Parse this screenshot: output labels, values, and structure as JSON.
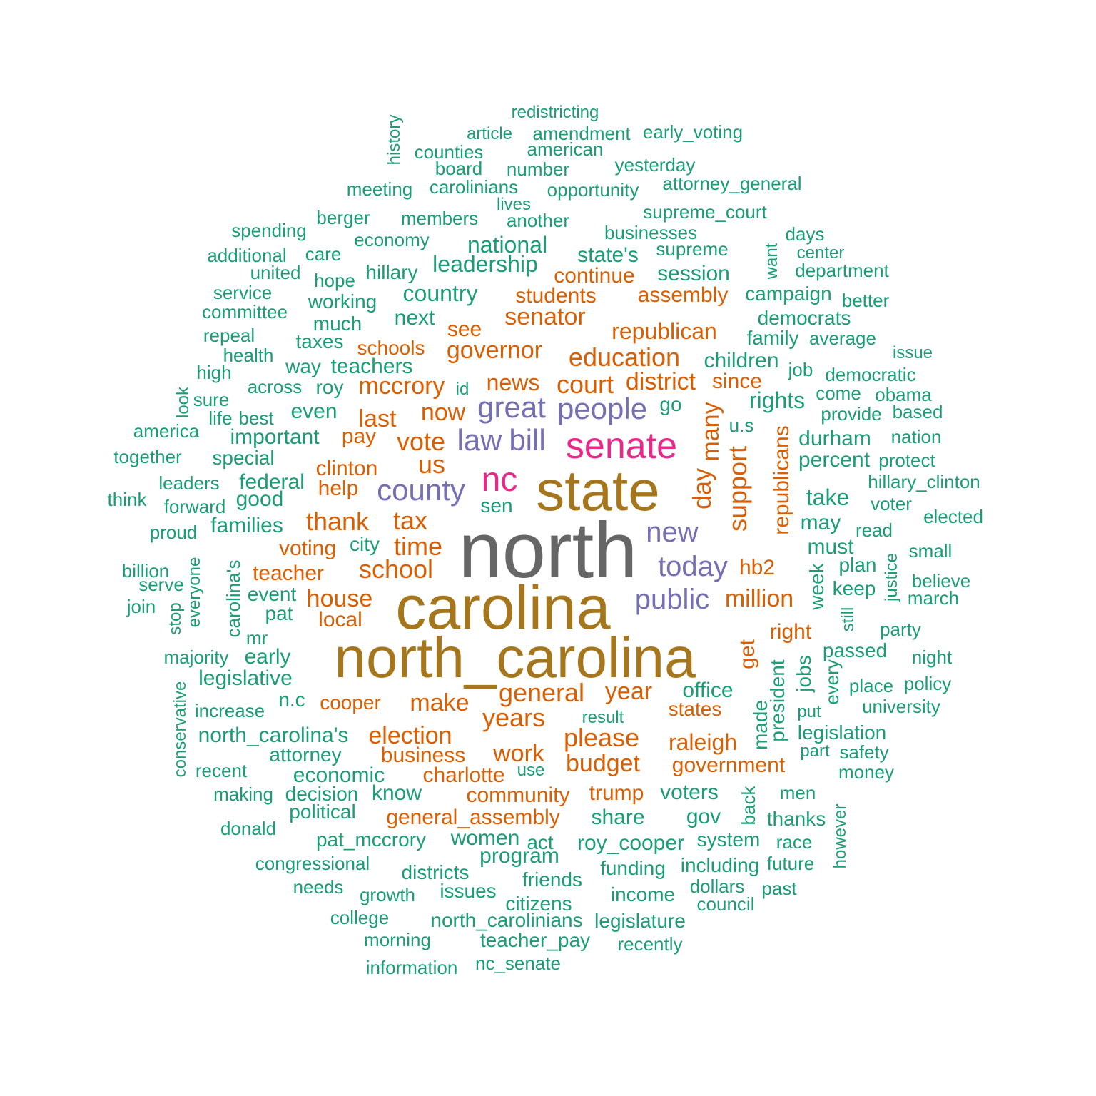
{
  "palette": {
    "teal": "#1b9e77",
    "orange": "#d95f02",
    "purple": "#7570b3",
    "magenta": "#e7298a",
    "olive": "#a6761d",
    "gray": "#666666"
  },
  "words": [
    {
      "text": "north",
      "color": "gray"
    },
    {
      "text": "carolina",
      "color": "olive"
    },
    {
      "text": "north_carolina",
      "color": "olive"
    },
    {
      "text": "state",
      "color": "olive"
    },
    {
      "text": "senate",
      "color": "magenta"
    },
    {
      "text": "nc",
      "color": "magenta"
    },
    {
      "text": "people",
      "color": "purple"
    },
    {
      "text": "great",
      "color": "purple"
    },
    {
      "text": "law",
      "color": "purple"
    },
    {
      "text": "bill",
      "color": "purple"
    },
    {
      "text": "county",
      "color": "purple"
    },
    {
      "text": "new",
      "color": "purple"
    },
    {
      "text": "today",
      "color": "purple"
    },
    {
      "text": "public",
      "color": "purple"
    },
    {
      "text": "education",
      "color": "orange"
    },
    {
      "text": "governor",
      "color": "orange"
    },
    {
      "text": "republican",
      "color": "orange"
    },
    {
      "text": "senator",
      "color": "orange"
    },
    {
      "text": "mccrory",
      "color": "orange"
    },
    {
      "text": "court",
      "color": "orange"
    },
    {
      "text": "district",
      "color": "orange"
    },
    {
      "text": "news",
      "color": "orange"
    },
    {
      "text": "vote",
      "color": "orange"
    },
    {
      "text": "now",
      "color": "orange"
    },
    {
      "text": "last",
      "color": "orange"
    },
    {
      "text": "us",
      "color": "orange"
    },
    {
      "text": "tax",
      "color": "orange"
    },
    {
      "text": "thank",
      "color": "orange"
    },
    {
      "text": "time",
      "color": "orange"
    },
    {
      "text": "school",
      "color": "orange"
    },
    {
      "text": "house",
      "color": "orange"
    },
    {
      "text": "million",
      "color": "orange"
    },
    {
      "text": "support",
      "color": "orange"
    },
    {
      "text": "day",
      "color": "orange"
    },
    {
      "text": "many",
      "color": "orange"
    },
    {
      "text": "republicans",
      "color": "orange"
    },
    {
      "text": "general",
      "color": "orange"
    },
    {
      "text": "year",
      "color": "orange"
    },
    {
      "text": "make",
      "color": "orange"
    },
    {
      "text": "years",
      "color": "orange"
    },
    {
      "text": "election",
      "color": "orange"
    },
    {
      "text": "please",
      "color": "orange"
    },
    {
      "text": "work",
      "color": "orange"
    },
    {
      "text": "budget",
      "color": "orange"
    },
    {
      "text": "raleigh",
      "color": "orange"
    },
    {
      "text": "government",
      "color": "orange"
    },
    {
      "text": "business",
      "color": "orange"
    },
    {
      "text": "charlotte",
      "color": "orange"
    },
    {
      "text": "community",
      "color": "orange"
    },
    {
      "text": "trump",
      "color": "orange"
    },
    {
      "text": "general_assembly",
      "color": "orange"
    },
    {
      "text": "continue",
      "color": "orange"
    },
    {
      "text": "students",
      "color": "orange"
    },
    {
      "text": "assembly",
      "color": "orange"
    },
    {
      "text": "see",
      "color": "orange"
    },
    {
      "text": "schools",
      "color": "orange"
    },
    {
      "text": "since",
      "color": "orange"
    },
    {
      "text": "pay",
      "color": "orange"
    },
    {
      "text": "clinton",
      "color": "orange"
    },
    {
      "text": "help",
      "color": "orange"
    },
    {
      "text": "voting",
      "color": "orange"
    },
    {
      "text": "teacher",
      "color": "orange"
    },
    {
      "text": "local",
      "color": "orange"
    },
    {
      "text": "hb2",
      "color": "orange"
    },
    {
      "text": "right",
      "color": "orange"
    },
    {
      "text": "get",
      "color": "orange"
    },
    {
      "text": "cooper",
      "color": "orange"
    },
    {
      "text": "states",
      "color": "orange"
    },
    {
      "text": "redistricting",
      "color": "teal"
    },
    {
      "text": "history",
      "color": "teal"
    },
    {
      "text": "article",
      "color": "teal"
    },
    {
      "text": "amendment",
      "color": "teal"
    },
    {
      "text": "early_voting",
      "color": "teal"
    },
    {
      "text": "counties",
      "color": "teal"
    },
    {
      "text": "american",
      "color": "teal"
    },
    {
      "text": "board",
      "color": "teal"
    },
    {
      "text": "number",
      "color": "teal"
    },
    {
      "text": "yesterday",
      "color": "teal"
    },
    {
      "text": "meeting",
      "color": "teal"
    },
    {
      "text": "carolinians",
      "color": "teal"
    },
    {
      "text": "opportunity",
      "color": "teal"
    },
    {
      "text": "attorney_general",
      "color": "teal"
    },
    {
      "text": "lives",
      "color": "teal"
    },
    {
      "text": "berger",
      "color": "teal"
    },
    {
      "text": "members",
      "color": "teal"
    },
    {
      "text": "another",
      "color": "teal"
    },
    {
      "text": "supreme_court",
      "color": "teal"
    },
    {
      "text": "spending",
      "color": "teal"
    },
    {
      "text": "economy",
      "color": "teal"
    },
    {
      "text": "businesses",
      "color": "teal"
    },
    {
      "text": "days",
      "color": "teal"
    },
    {
      "text": "national",
      "color": "teal"
    },
    {
      "text": "additional",
      "color": "teal"
    },
    {
      "text": "care",
      "color": "teal"
    },
    {
      "text": "state's",
      "color": "teal"
    },
    {
      "text": "supreme",
      "color": "teal"
    },
    {
      "text": "want",
      "color": "teal"
    },
    {
      "text": "center",
      "color": "teal"
    },
    {
      "text": "united",
      "color": "teal"
    },
    {
      "text": "hope",
      "color": "teal"
    },
    {
      "text": "hillary",
      "color": "teal"
    },
    {
      "text": "leadership",
      "color": "teal"
    },
    {
      "text": "session",
      "color": "teal"
    },
    {
      "text": "department",
      "color": "teal"
    },
    {
      "text": "service",
      "color": "teal"
    },
    {
      "text": "working",
      "color": "teal"
    },
    {
      "text": "country",
      "color": "teal"
    },
    {
      "text": "campaign",
      "color": "teal"
    },
    {
      "text": "better",
      "color": "teal"
    },
    {
      "text": "committee",
      "color": "teal"
    },
    {
      "text": "much",
      "color": "teal"
    },
    {
      "text": "next",
      "color": "teal"
    },
    {
      "text": "democrats",
      "color": "teal"
    },
    {
      "text": "repeal",
      "color": "teal"
    },
    {
      "text": "taxes",
      "color": "teal"
    },
    {
      "text": "family",
      "color": "teal"
    },
    {
      "text": "average",
      "color": "teal"
    },
    {
      "text": "health",
      "color": "teal"
    },
    {
      "text": "issue",
      "color": "teal"
    },
    {
      "text": "way",
      "color": "teal"
    },
    {
      "text": "teachers",
      "color": "teal"
    },
    {
      "text": "children",
      "color": "teal"
    },
    {
      "text": "job",
      "color": "teal"
    },
    {
      "text": "democratic",
      "color": "teal"
    },
    {
      "text": "high",
      "color": "teal"
    },
    {
      "text": "across",
      "color": "teal"
    },
    {
      "text": "roy",
      "color": "teal"
    },
    {
      "text": "id",
      "color": "teal"
    },
    {
      "text": "look",
      "color": "teal"
    },
    {
      "text": "sure",
      "color": "teal"
    },
    {
      "text": "rights",
      "color": "teal"
    },
    {
      "text": "come",
      "color": "teal"
    },
    {
      "text": "obama",
      "color": "teal"
    },
    {
      "text": "go",
      "color": "teal"
    },
    {
      "text": "life",
      "color": "teal"
    },
    {
      "text": "best",
      "color": "teal"
    },
    {
      "text": "even",
      "color": "teal"
    },
    {
      "text": "provide",
      "color": "teal"
    },
    {
      "text": "based",
      "color": "teal"
    },
    {
      "text": "america",
      "color": "teal"
    },
    {
      "text": "u.s",
      "color": "teal"
    },
    {
      "text": "important",
      "color": "teal"
    },
    {
      "text": "durham",
      "color": "teal"
    },
    {
      "text": "nation",
      "color": "teal"
    },
    {
      "text": "together",
      "color": "teal"
    },
    {
      "text": "special",
      "color": "teal"
    },
    {
      "text": "percent",
      "color": "teal"
    },
    {
      "text": "protect",
      "color": "teal"
    },
    {
      "text": "leaders",
      "color": "teal"
    },
    {
      "text": "federal",
      "color": "teal"
    },
    {
      "text": "hillary_clinton",
      "color": "teal"
    },
    {
      "text": "think",
      "color": "teal"
    },
    {
      "text": "good",
      "color": "teal"
    },
    {
      "text": "take",
      "color": "teal"
    },
    {
      "text": "forward",
      "color": "teal"
    },
    {
      "text": "sen",
      "color": "teal"
    },
    {
      "text": "voter",
      "color": "teal"
    },
    {
      "text": "elected",
      "color": "teal"
    },
    {
      "text": "proud",
      "color": "teal"
    },
    {
      "text": "families",
      "color": "teal"
    },
    {
      "text": "may",
      "color": "teal"
    },
    {
      "text": "read",
      "color": "teal"
    },
    {
      "text": "city",
      "color": "teal"
    },
    {
      "text": "must",
      "color": "teal"
    },
    {
      "text": "small",
      "color": "teal"
    },
    {
      "text": "billion",
      "color": "teal"
    },
    {
      "text": "everyone",
      "color": "teal"
    },
    {
      "text": "carolina's",
      "color": "teal"
    },
    {
      "text": "week",
      "color": "teal"
    },
    {
      "text": "plan",
      "color": "teal"
    },
    {
      "text": "justice",
      "color": "teal"
    },
    {
      "text": "believe",
      "color": "teal"
    },
    {
      "text": "serve",
      "color": "teal"
    },
    {
      "text": "event",
      "color": "teal"
    },
    {
      "text": "keep",
      "color": "teal"
    },
    {
      "text": "march",
      "color": "teal"
    },
    {
      "text": "join",
      "color": "teal"
    },
    {
      "text": "stop",
      "color": "teal"
    },
    {
      "text": "pat",
      "color": "teal"
    },
    {
      "text": "still",
      "color": "teal"
    },
    {
      "text": "party",
      "color": "teal"
    },
    {
      "text": "mr",
      "color": "teal"
    },
    {
      "text": "passed",
      "color": "teal"
    },
    {
      "text": "night",
      "color": "teal"
    },
    {
      "text": "majority",
      "color": "teal"
    },
    {
      "text": "early",
      "color": "teal"
    },
    {
      "text": "legislative",
      "color": "teal"
    },
    {
      "text": "president",
      "color": "teal"
    },
    {
      "text": "jobs",
      "color": "teal"
    },
    {
      "text": "every",
      "color": "teal"
    },
    {
      "text": "place",
      "color": "teal"
    },
    {
      "text": "policy",
      "color": "teal"
    },
    {
      "text": "conservative",
      "color": "teal"
    },
    {
      "text": "n.c",
      "color": "teal"
    },
    {
      "text": "office",
      "color": "teal"
    },
    {
      "text": "made",
      "color": "teal"
    },
    {
      "text": "put",
      "color": "teal"
    },
    {
      "text": "university",
      "color": "teal"
    },
    {
      "text": "increase",
      "color": "teal"
    },
    {
      "text": "result",
      "color": "teal"
    },
    {
      "text": "north_carolina's",
      "color": "teal"
    },
    {
      "text": "legislation",
      "color": "teal"
    },
    {
      "text": "attorney",
      "color": "teal"
    },
    {
      "text": "part",
      "color": "teal"
    },
    {
      "text": "safety",
      "color": "teal"
    },
    {
      "text": "recent",
      "color": "teal"
    },
    {
      "text": "economic",
      "color": "teal"
    },
    {
      "text": "use",
      "color": "teal"
    },
    {
      "text": "money",
      "color": "teal"
    },
    {
      "text": "making",
      "color": "teal"
    },
    {
      "text": "decision",
      "color": "teal"
    },
    {
      "text": "know",
      "color": "teal"
    },
    {
      "text": "voters",
      "color": "teal"
    },
    {
      "text": "men",
      "color": "teal"
    },
    {
      "text": "political",
      "color": "teal"
    },
    {
      "text": "share",
      "color": "teal"
    },
    {
      "text": "gov",
      "color": "teal"
    },
    {
      "text": "back",
      "color": "teal"
    },
    {
      "text": "thanks",
      "color": "teal"
    },
    {
      "text": "however",
      "color": "teal"
    },
    {
      "text": "donald",
      "color": "teal"
    },
    {
      "text": "pat_mccrory",
      "color": "teal"
    },
    {
      "text": "women",
      "color": "teal"
    },
    {
      "text": "act",
      "color": "teal"
    },
    {
      "text": "roy_cooper",
      "color": "teal"
    },
    {
      "text": "system",
      "color": "teal"
    },
    {
      "text": "race",
      "color": "teal"
    },
    {
      "text": "program",
      "color": "teal"
    },
    {
      "text": "congressional",
      "color": "teal"
    },
    {
      "text": "future",
      "color": "teal"
    },
    {
      "text": "districts",
      "color": "teal"
    },
    {
      "text": "friends",
      "color": "teal"
    },
    {
      "text": "funding",
      "color": "teal"
    },
    {
      "text": "including",
      "color": "teal"
    },
    {
      "text": "needs",
      "color": "teal"
    },
    {
      "text": "issues",
      "color": "teal"
    },
    {
      "text": "dollars",
      "color": "teal"
    },
    {
      "text": "past",
      "color": "teal"
    },
    {
      "text": "growth",
      "color": "teal"
    },
    {
      "text": "income",
      "color": "teal"
    },
    {
      "text": "citizens",
      "color": "teal"
    },
    {
      "text": "council",
      "color": "teal"
    },
    {
      "text": "college",
      "color": "teal"
    },
    {
      "text": "north_carolinians",
      "color": "teal"
    },
    {
      "text": "legislature",
      "color": "teal"
    },
    {
      "text": "morning",
      "color": "teal"
    },
    {
      "text": "teacher_pay",
      "color": "teal"
    },
    {
      "text": "recently",
      "color": "teal"
    },
    {
      "text": "information",
      "color": "teal"
    },
    {
      "text": "nc_senate",
      "color": "teal"
    }
  ]
}
